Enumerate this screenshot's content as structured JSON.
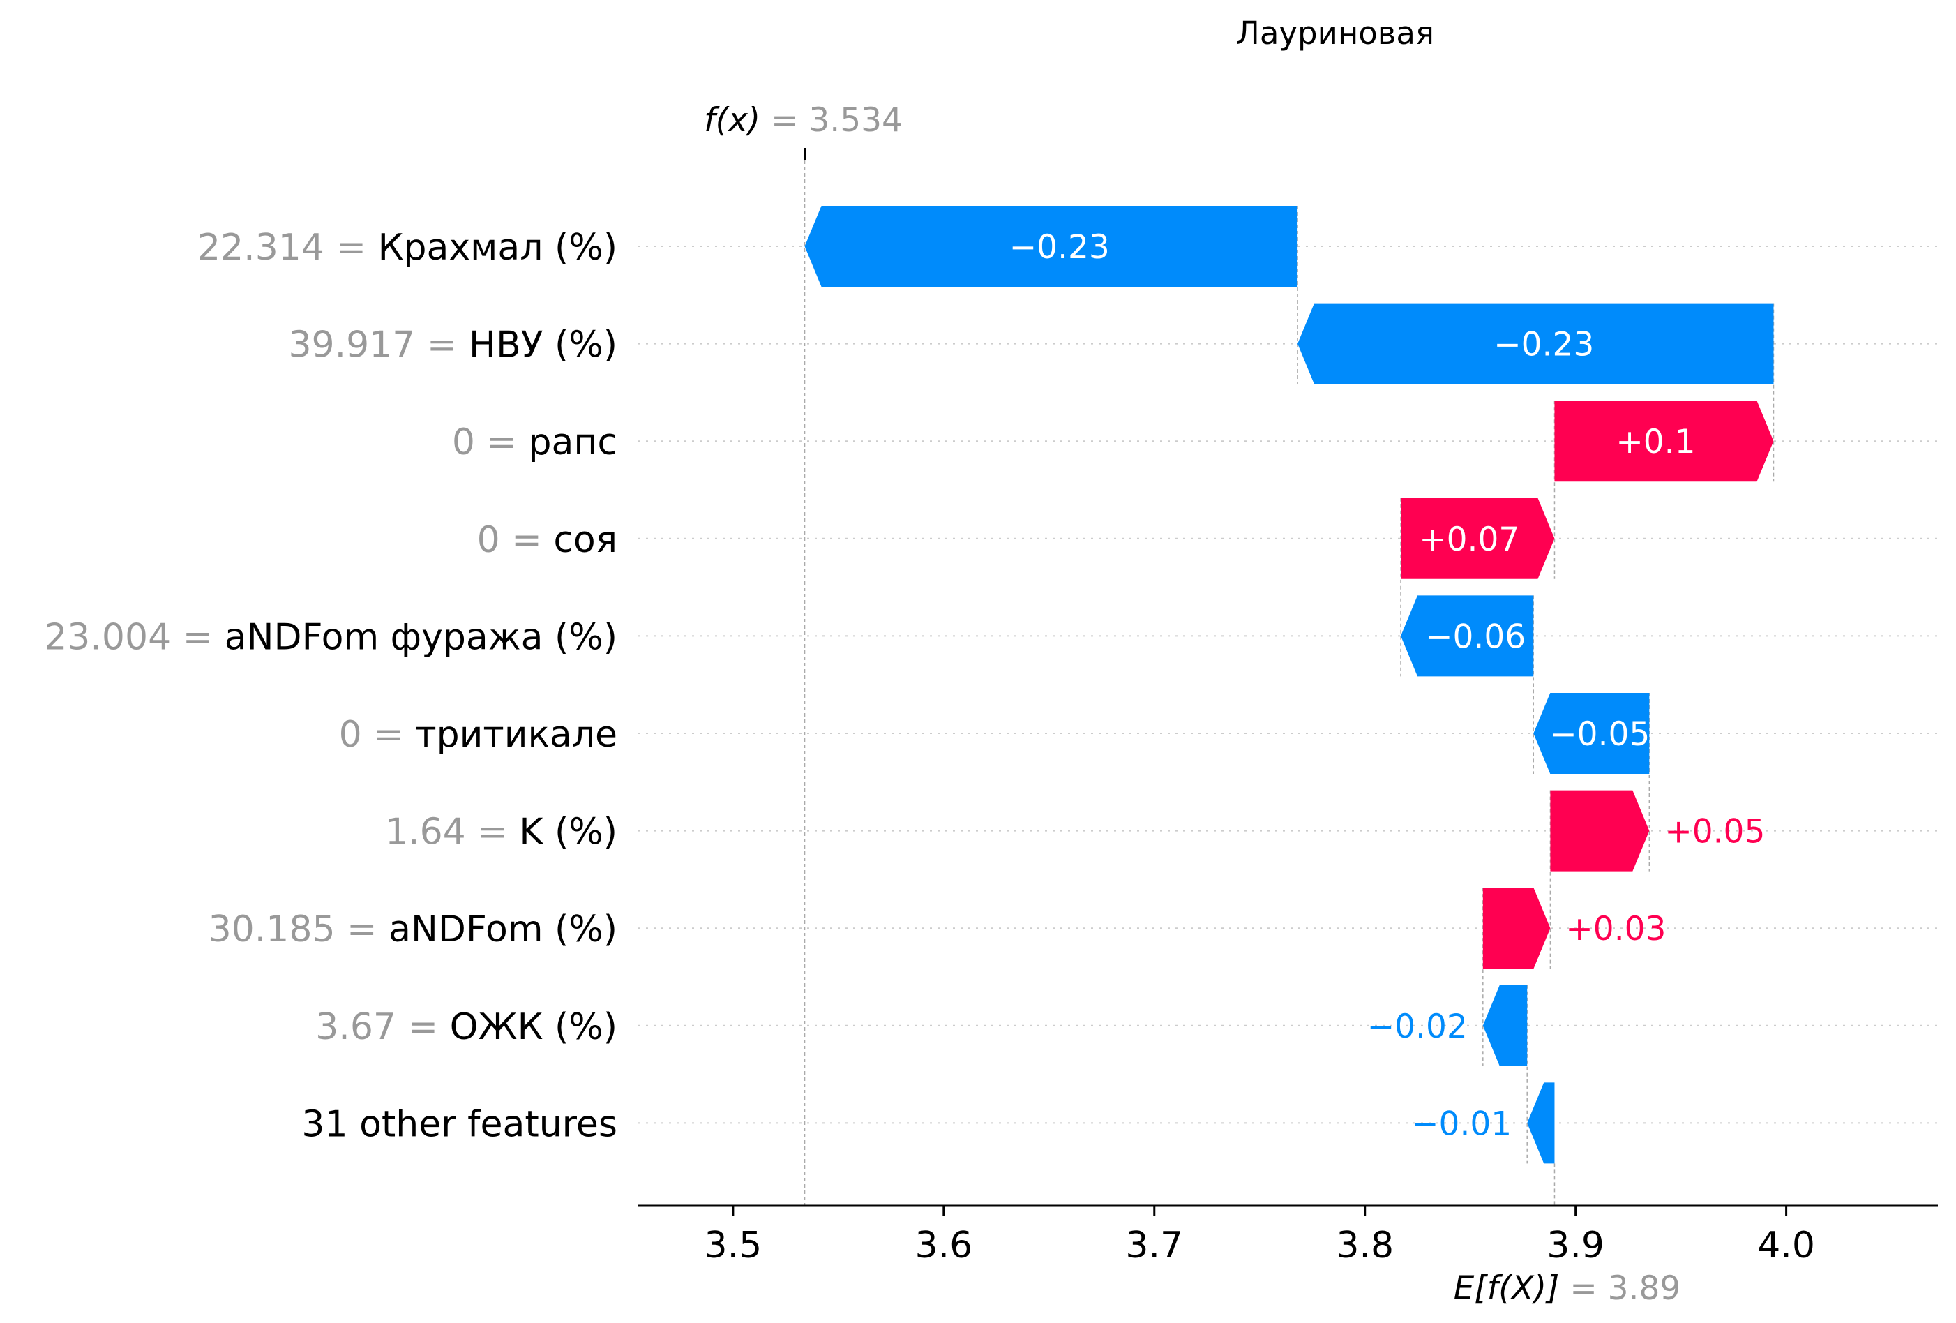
{
  "chart_data": {
    "type": "waterfall",
    "title": "Лауриновая",
    "base_value": 3.89,
    "base_label_prefix": "E[f(X)]",
    "base_label_value": " = 3.89",
    "output_value": 3.534,
    "output_label_prefix": "f(x)",
    "output_label_value": " = 3.534",
    "xlim": [
      3.455,
      4.072
    ],
    "xticks": [
      3.5,
      3.6,
      3.7,
      3.8,
      3.9,
      4.0
    ],
    "xtick_labels": [
      "3.5",
      "3.6",
      "3.7",
      "3.8",
      "3.9",
      "4.0"
    ],
    "colors": {
      "positive": "#ff0051",
      "negative": "#008bfb",
      "gray": "#999999"
    },
    "features": [
      {
        "value_text": "22.314 = ",
        "name": "Крахмал (%)",
        "shap": -0.234,
        "label": "−0.23"
      },
      {
        "value_text": "39.917 = ",
        "name": "НВУ (%)",
        "shap": -0.226,
        "label": "−0.23"
      },
      {
        "value_text": "0 = ",
        "name": "рапс",
        "shap": 0.104,
        "label": "+0.1"
      },
      {
        "value_text": "0 = ",
        "name": "соя",
        "shap": 0.073,
        "label": "+0.07"
      },
      {
        "value_text": "23.004 = ",
        "name": "aNDFom фуража (%)",
        "shap": -0.063,
        "label": "−0.06"
      },
      {
        "value_text": "0 = ",
        "name": "тритикале",
        "shap": -0.055,
        "label": "−0.05"
      },
      {
        "value_text": "1.64 = ",
        "name": "K (%)",
        "shap": 0.047,
        "label": "+0.05"
      },
      {
        "value_text": "30.185 = ",
        "name": "aNDFom (%)",
        "shap": 0.032,
        "label": "+0.03"
      },
      {
        "value_text": "3.67 = ",
        "name": "ОЖК (%)",
        "shap": -0.021,
        "label": "−0.02"
      },
      {
        "value_text": "",
        "name": "31 other features",
        "shap": -0.013,
        "label": "−0.01"
      }
    ]
  }
}
